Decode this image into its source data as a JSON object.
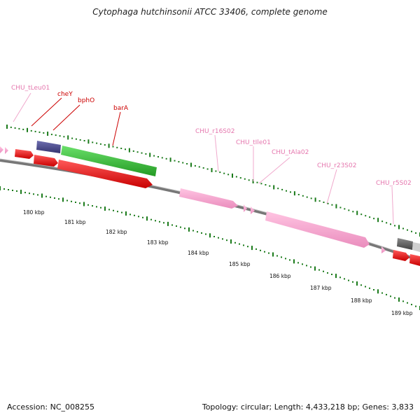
{
  "title": "Cytophaga hutchinsonii ATCC 33406, complete genome",
  "footer": {
    "accession": "Accession: NC_008255",
    "stats": "Topology: circular; Length: 4,433,218 bp; Genes: 3,833"
  },
  "colors": {
    "cds": "#e00000",
    "rna": "#f4a6cf",
    "green_gene": "#3ec43e",
    "blue_gene": "#4b4b8a",
    "backbone": "#888888",
    "tick": "#1a7a1a"
  },
  "kbp_labels": [
    "180 kbp",
    "181 kbp",
    "182 kbp",
    "183 kbp",
    "184 kbp",
    "185 kbp",
    "186 kbp",
    "187 kbp",
    "188 kbp",
    "189 kbp"
  ],
  "feature_labels": [
    {
      "name": "CHU_tLeu01",
      "kind": "rna"
    },
    {
      "name": "cheY",
      "kind": "gene"
    },
    {
      "name": "bphO",
      "kind": "gene"
    },
    {
      "name": "barA",
      "kind": "gene"
    },
    {
      "name": "CHU_r16S02",
      "kind": "rna"
    },
    {
      "name": "CHU_tIle01",
      "kind": "rna"
    },
    {
      "name": "CHU_tAla02",
      "kind": "rna"
    },
    {
      "name": "CHU_r23S02",
      "kind": "rna"
    },
    {
      "name": "CHU_r5S02",
      "kind": "rna"
    }
  ]
}
